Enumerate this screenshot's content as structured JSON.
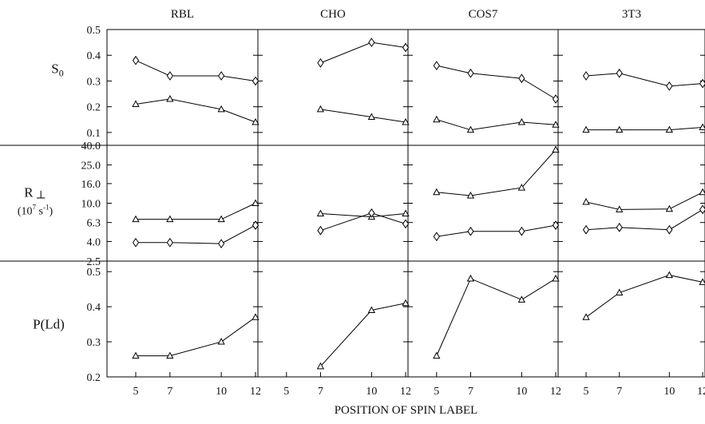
{
  "chart_data": {
    "type": "line",
    "xlabel": "POSITION OF SPIN LABEL",
    "x_ticks": [
      5,
      7,
      10,
      12
    ],
    "columns": [
      "RBL",
      "CHO",
      "COS7",
      "3T3"
    ],
    "rows": [
      {
        "key": "s0",
        "label": "S",
        "label_sub": "0",
        "ylim": [
          0.05,
          0.5
        ],
        "scale": "linear",
        "ticks": [
          {
            "value": 0.1,
            "label": "0.1"
          },
          {
            "value": 0.2,
            "label": "0.2"
          },
          {
            "value": 0.3,
            "label": "0.3"
          },
          {
            "value": 0.4,
            "label": "0.4"
          },
          {
            "value": 0.5,
            "label": "0.5"
          }
        ],
        "series": {
          "RBL": [
            {
              "marker": "diamond",
              "x": [
                5,
                7,
                10,
                12
              ],
              "y": [
                0.38,
                0.32,
                0.32,
                0.3
              ]
            },
            {
              "marker": "triangle",
              "x": [
                5,
                7,
                10,
                12
              ],
              "y": [
                0.21,
                0.23,
                0.19,
                0.14
              ]
            }
          ],
          "CHO": [
            {
              "marker": "diamond",
              "x": [
                7,
                10,
                12
              ],
              "y": [
                0.37,
                0.45,
                0.43
              ]
            },
            {
              "marker": "triangle",
              "x": [
                7,
                10,
                12
              ],
              "y": [
                0.19,
                0.16,
                0.14
              ]
            }
          ],
          "COS7": [
            {
              "marker": "diamond",
              "x": [
                5,
                7,
                10,
                12
              ],
              "y": [
                0.36,
                0.33,
                0.31,
                0.23
              ]
            },
            {
              "marker": "triangle",
              "x": [
                5,
                7,
                10,
                12
              ],
              "y": [
                0.15,
                0.11,
                0.14,
                0.13
              ]
            }
          ],
          "3T3": [
            {
              "marker": "diamond",
              "x": [
                5,
                7,
                10,
                12
              ],
              "y": [
                0.32,
                0.33,
                0.28,
                0.29
              ]
            },
            {
              "marker": "triangle",
              "x": [
                5,
                7,
                10,
                12
              ],
              "y": [
                0.11,
                0.11,
                0.11,
                0.12
              ]
            }
          ]
        }
      },
      {
        "key": "rperp",
        "label": "R",
        "label_symbol": "⊥",
        "units": "(10",
        "units_sup": "7",
        "units_mid": " s",
        "units_sup2": "-1",
        "units_end": ")",
        "ylim": [
          2.5,
          40.0
        ],
        "scale": "log",
        "ticks": [
          {
            "value": 2.5,
            "label": "2.5"
          },
          {
            "value": 4.0,
            "label": "4.0"
          },
          {
            "value": 6.3,
            "label": "6.3"
          },
          {
            "value": 10.0,
            "label": "10.0"
          },
          {
            "value": 16.0,
            "label": "16.0"
          },
          {
            "value": 25.0,
            "label": "25.0"
          },
          {
            "value": 40.0,
            "label": "40.0"
          }
        ],
        "series": {
          "RBL": [
            {
              "marker": "triangle",
              "x": [
                5,
                7,
                10,
                12
              ],
              "y": [
                6.8,
                6.8,
                6.8,
                10.0
              ]
            },
            {
              "marker": "diamond",
              "x": [
                5,
                7,
                10,
                12
              ],
              "y": [
                3.9,
                3.9,
                3.8,
                5.9
              ]
            }
          ],
          "CHO": [
            {
              "marker": "triangle",
              "x": [
                7,
                10,
                12
              ],
              "y": [
                7.8,
                7.2,
                7.8
              ]
            },
            {
              "marker": "diamond",
              "x": [
                7,
                10,
                12
              ],
              "y": [
                5.2,
                7.9,
                6.1
              ]
            }
          ],
          "COS7": [
            {
              "marker": "triangle",
              "x": [
                5,
                7,
                10,
                12
              ],
              "y": [
                13.0,
                12.0,
                14.5,
                36.0
              ]
            },
            {
              "marker": "diamond",
              "x": [
                5,
                7,
                10,
                12
              ],
              "y": [
                4.5,
                5.1,
                5.1,
                5.9
              ]
            }
          ],
          "3T3": [
            {
              "marker": "triangle",
              "x": [
                5,
                7,
                10,
                12
              ],
              "y": [
                10.3,
                8.6,
                8.7,
                13.0
              ]
            },
            {
              "marker": "diamond",
              "x": [
                5,
                7,
                10,
                12
              ],
              "y": [
                5.3,
                5.6,
                5.3,
                8.6
              ]
            }
          ]
        }
      },
      {
        "key": "pld",
        "label": "P(Ld)",
        "ylim": [
          0.2,
          0.53
        ],
        "scale": "linear",
        "ticks": [
          {
            "value": 0.2,
            "label": "0.2"
          },
          {
            "value": 0.3,
            "label": "0.3"
          },
          {
            "value": 0.4,
            "label": "0.4"
          },
          {
            "value": 0.5,
            "label": "0.5"
          }
        ],
        "series": {
          "RBL": [
            {
              "marker": "triangle",
              "x": [
                5,
                7,
                10,
                12
              ],
              "y": [
                0.26,
                0.26,
                0.3,
                0.37
              ]
            }
          ],
          "CHO": [
            {
              "marker": "triangle",
              "x": [
                7,
                10,
                12
              ],
              "y": [
                0.23,
                0.39,
                0.41
              ]
            }
          ],
          "COS7": [
            {
              "marker": "triangle",
              "x": [
                5,
                7,
                10,
                12
              ],
              "y": [
                0.26,
                0.48,
                0.42,
                0.48
              ]
            }
          ],
          "3T3": [
            {
              "marker": "triangle",
              "x": [
                5,
                7,
                10,
                12
              ],
              "y": [
                0.37,
                0.44,
                0.49,
                0.47
              ]
            }
          ]
        }
      }
    ]
  }
}
